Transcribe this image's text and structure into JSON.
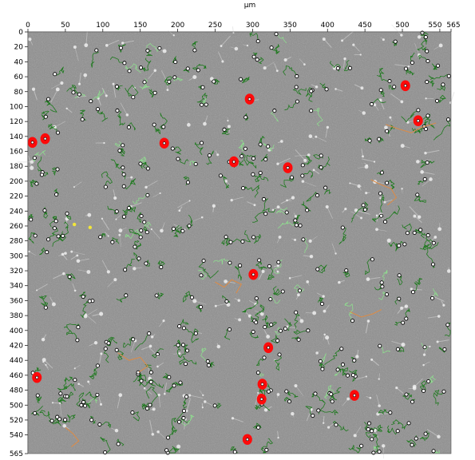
{
  "axes": {
    "unit": "µm",
    "x_ticks": [
      "0",
      "50",
      "100",
      "150",
      "200",
      "250",
      "300",
      "350",
      "400",
      "450",
      "500",
      "550",
      "565"
    ],
    "y_ticks": [
      "0",
      "20",
      "40",
      "60",
      "80",
      "100",
      "120",
      "140",
      "160",
      "180",
      "200",
      "220",
      "240",
      "260",
      "280",
      "300",
      "320",
      "340",
      "360",
      "380",
      "400",
      "420",
      "440",
      "460",
      "480",
      "500",
      "520",
      "540",
      "565"
    ],
    "x_range": [
      0,
      565
    ],
    "y_range": [
      0,
      565
    ]
  },
  "colors": {
    "background": "#8e8e8e",
    "track": "#1f7a1f",
    "track_light": "#8fdc8f",
    "track_orange": "#d98c4a",
    "marker": "#ff0a0a"
  },
  "red_markers_um": [
    [
      6,
      148
    ],
    [
      23,
      143
    ],
    [
      12,
      463
    ],
    [
      182,
      149
    ],
    [
      275,
      174
    ],
    [
      296,
      90
    ],
    [
      347,
      182
    ],
    [
      504,
      72
    ],
    [
      521,
      119
    ],
    [
      301,
      325
    ],
    [
      321,
      423
    ],
    [
      313,
      472
    ],
    [
      312,
      492
    ],
    [
      436,
      487
    ],
    [
      293,
      546
    ]
  ],
  "orange_tracks_um": [
    [
      [
        478,
        124
      ],
      [
        495,
        130
      ],
      [
        512,
        135
      ],
      [
        525,
        128
      ],
      [
        545,
        122
      ]
    ],
    [
      [
        458,
        198
      ],
      [
        470,
        204
      ],
      [
        485,
        210
      ],
      [
        492,
        222
      ],
      [
        480,
        232
      ]
    ],
    [
      [
        250,
        335
      ],
      [
        262,
        342
      ],
      [
        272,
        332
      ],
      [
        285,
        338
      ],
      [
        278,
        350
      ]
    ],
    [
      [
        120,
        430
      ],
      [
        135,
        440
      ],
      [
        150,
        436
      ],
      [
        160,
        448
      ],
      [
        148,
        456
      ]
    ],
    [
      [
        430,
        375
      ],
      [
        445,
        382
      ],
      [
        460,
        378
      ],
      [
        472,
        372
      ]
    ],
    [
      [
        50,
        530
      ],
      [
        60,
        538
      ],
      [
        68,
        548
      ],
      [
        58,
        556
      ]
    ]
  ],
  "yellow_markers_um": [
    [
      62,
      258
    ],
    [
      83,
      262
    ]
  ]
}
